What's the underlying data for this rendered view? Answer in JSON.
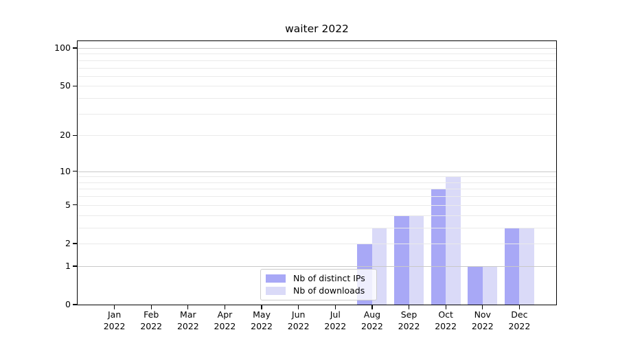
{
  "chart_data": {
    "type": "bar",
    "title": "waiter 2022",
    "categories": [
      "Jan",
      "Feb",
      "Mar",
      "Apr",
      "May",
      "Jun",
      "Jul",
      "Aug",
      "Sep",
      "Oct",
      "Nov",
      "Dec"
    ],
    "x_year": "2022",
    "series": [
      {
        "name": "Nb of distinct IPs",
        "color": "#a8a8f6",
        "values": [
          0,
          0,
          0,
          0,
          0,
          0,
          0,
          2,
          4,
          7,
          1,
          3
        ]
      },
      {
        "name": "Nb of downloads",
        "color": "#dadaf8",
        "values": [
          0,
          0,
          0,
          0,
          0,
          0,
          0,
          3,
          4,
          9,
          1,
          3
        ]
      }
    ],
    "y_scale": "log1p",
    "ylim": [
      0,
      115
    ],
    "y_tick_values": [
      0,
      1,
      2,
      5,
      10,
      20,
      50,
      100
    ],
    "y_tick_labels": [
      "0",
      "1",
      "2",
      "5",
      "10",
      "20",
      "50",
      "100"
    ],
    "y_major_gridlines": [
      1,
      10,
      100
    ],
    "y_minor_gridlines": [
      2,
      3,
      4,
      5,
      6,
      7,
      8,
      9,
      20,
      30,
      40,
      50,
      60,
      70,
      80,
      90
    ],
    "grid": true,
    "legend_position": "lower center"
  },
  "colors": {
    "major_grid": "#c8c8c8",
    "minor_grid": "#eaeaea",
    "spine": "#000000",
    "text": "#000000",
    "legend_border": "#cccccc",
    "bar_distinct_ips": "#a8a8f6",
    "bar_downloads": "#dadaf8"
  }
}
